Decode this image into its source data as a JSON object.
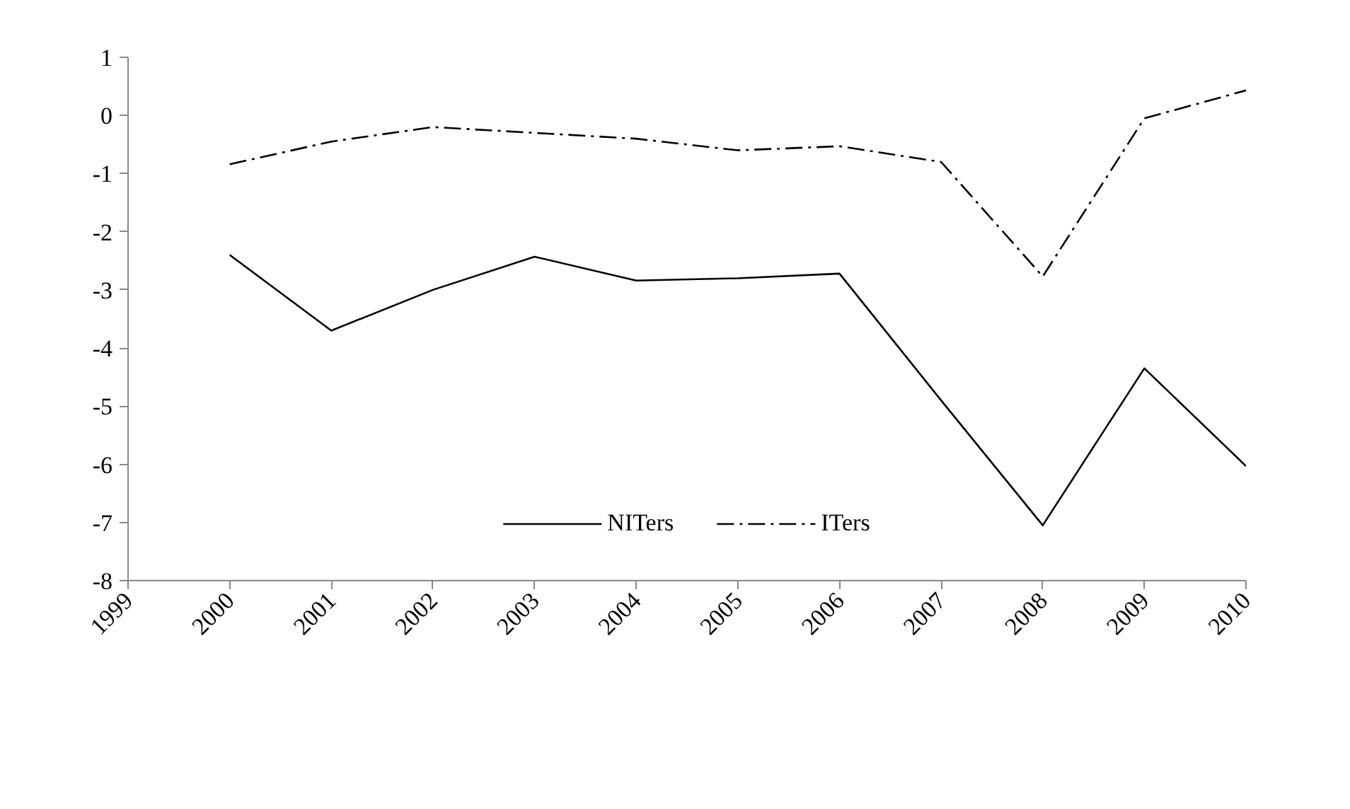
{
  "chart_data": {
    "type": "line",
    "x": [
      2000,
      2001,
      2002,
      2003,
      2004,
      2005,
      2006,
      2007,
      2008,
      2009,
      2010
    ],
    "series": [
      {
        "name": "NITers",
        "color": "#000000",
        "line_style": "solid",
        "values": [
          -2.4,
          -3.7,
          -3.0,
          -2.43,
          -2.84,
          -2.8,
          -2.72,
          -4.9,
          -7.05,
          -4.35,
          -6.03
        ]
      },
      {
        "name": "ITers",
        "color": "#000000",
        "line_style": "dashdot",
        "values": [
          -0.84,
          -0.45,
          -0.2,
          -0.3,
          -0.4,
          -0.6,
          -0.53,
          -0.8,
          -2.77,
          -0.05,
          0.43
        ]
      }
    ],
    "xlim": [
      1999,
      2010
    ],
    "xticks": [
      1999,
      2000,
      2001,
      2002,
      2003,
      2004,
      2005,
      2006,
      2007,
      2008,
      2009,
      2010
    ],
    "ylim": [
      -8,
      1
    ],
    "yticks": [
      -8,
      -7,
      -6,
      -5,
      -4,
      -3,
      -2,
      -1,
      0,
      1
    ],
    "grid": false,
    "legend": "bottom",
    "marker": "none"
  }
}
